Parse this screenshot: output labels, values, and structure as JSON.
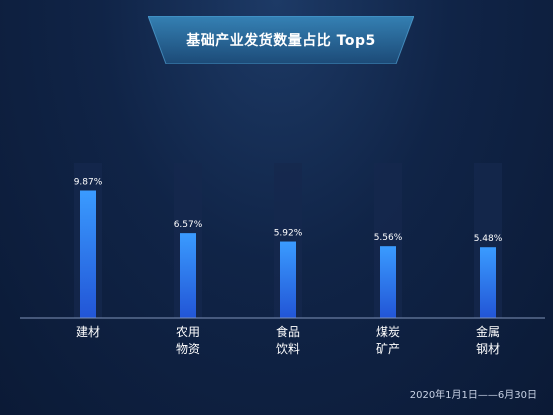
{
  "title": "基础产业发货数量占比 Top5",
  "date_range": "2020年1月1日——6月30日",
  "colors": {
    "bar_top": "#3a9bff",
    "bar_bottom": "#2255d6",
    "track": "#15284d",
    "banner_top": "#3a8fc4",
    "banner_bottom": "#1d4f7d",
    "text": "#ffffff"
  },
  "chart_data": {
    "type": "bar",
    "categories": [
      "建材",
      "农用\n物资",
      "食品\n饮料",
      "煤炭\n矿产",
      "金属\n钢材"
    ],
    "values": [
      9.87,
      6.57,
      5.92,
      5.56,
      5.48
    ],
    "value_labels": [
      "9.87%",
      "6.57%",
      "5.92%",
      "5.56%",
      "5.48%"
    ],
    "ylim": [
      0,
      12
    ],
    "grid": false
  }
}
